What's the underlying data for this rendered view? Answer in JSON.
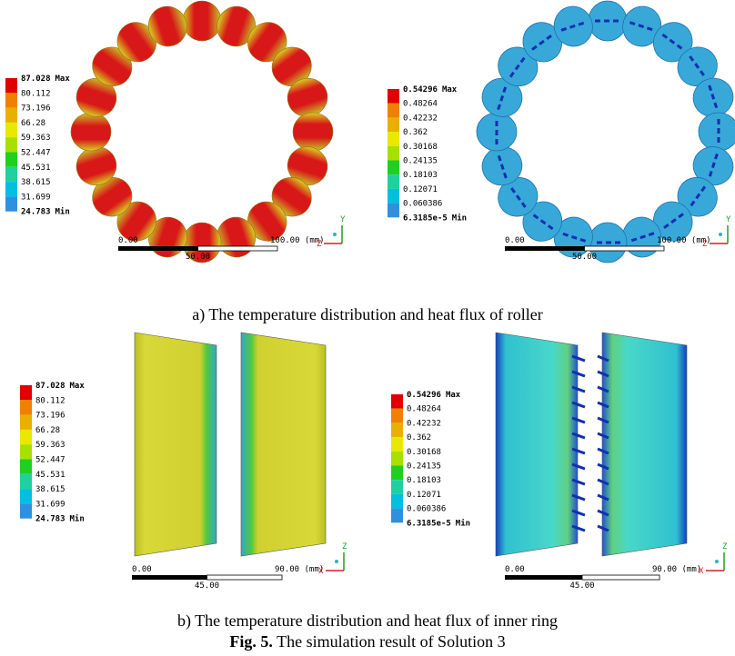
{
  "panels": [
    {
      "legend": {
        "max_tag": "Max",
        "min_tag": "Min",
        "levels": [
          "87.028",
          "80.112",
          "73.196",
          "66.28",
          "59.363",
          "52.447",
          "45.531",
          "38.615",
          "31.699",
          "24.783"
        ]
      },
      "scale": {
        "start": "0.00",
        "end": "100.00 (mm)",
        "mid": "50.00"
      },
      "axes": [
        "Y",
        "Z"
      ]
    },
    {
      "legend": {
        "max_tag": "Max",
        "min_tag": "Min",
        "levels": [
          "0.54296",
          "0.48264",
          "0.42232",
          "0.362",
          "0.30168",
          "0.24135",
          "0.18103",
          "0.12071",
          "0.060386",
          "6.3185e-5"
        ]
      },
      "scale": {
        "start": "0.00",
        "end": "100.00 (mm)",
        "mid": "50.00"
      },
      "axes": [
        "Y",
        "Z"
      ]
    },
    {
      "legend": {
        "max_tag": "Max",
        "min_tag": "Min",
        "levels": [
          "87.028",
          "80.112",
          "73.196",
          "66.28",
          "59.363",
          "52.447",
          "45.531",
          "38.615",
          "31.699",
          "24.783"
        ]
      },
      "scale": {
        "start": "0.00",
        "end": "90.00 (mm)",
        "mid": "45.00"
      },
      "axes": [
        "Z",
        "X"
      ]
    },
    {
      "legend": {
        "max_tag": "Max",
        "min_tag": "Min",
        "levels": [
          "0.54296",
          "0.48264",
          "0.42232",
          "0.362",
          "0.30168",
          "0.24135",
          "0.18103",
          "0.12071",
          "0.060386",
          "6.3185e-5"
        ]
      },
      "scale": {
        "start": "0.00",
        "end": "90.00 (mm)",
        "mid": "45.00"
      },
      "axes": [
        "Z",
        "X"
      ]
    }
  ],
  "captions": {
    "a": "a) The temperature distribution and heat flux of roller",
    "b": "b) The temperature distribution and heat flux of inner ring"
  },
  "figure": {
    "label": "Fig. 5.",
    "text": "The simulation result of Solution 3"
  }
}
